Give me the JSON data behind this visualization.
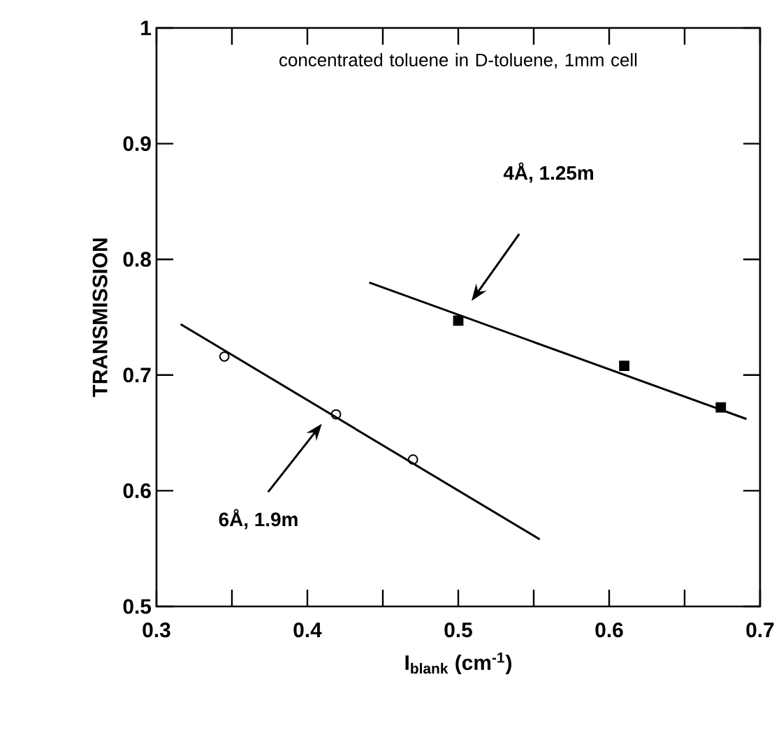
{
  "chart_data": {
    "type": "scatter",
    "title": "concentrated toluene in D-toluene, 1mm cell",
    "xlabel": "I$_{blank}$ (cm$^{-1}$)",
    "ylabel": "TRANSMISSION",
    "xlim": [
      0.3,
      0.7
    ],
    "ylim": [
      0.5,
      1
    ],
    "xticks": [
      0.3,
      {
        "value": 0.35,
        "label": null
      },
      0.4,
      {
        "value": 0.45,
        "label": null
      },
      0.5,
      {
        "value": 0.55,
        "label": null
      },
      0.6,
      {
        "value": 0.65,
        "label": null
      },
      0.7
    ],
    "yticks": [
      0.5,
      0.6,
      0.7,
      0.8,
      0.9,
      1
    ],
    "grid": false,
    "legend": false,
    "series": [
      {
        "marker": "circle",
        "color": "#000000",
        "x": [
          0.345,
          0.419,
          0.47
        ],
        "values": [
          0.716,
          0.666,
          0.627
        ]
      },
      {
        "marker": "square",
        "color": "#000000",
        "x": [
          0.5,
          0.61,
          0.674
        ],
        "values": [
          0.747,
          0.708,
          0.672
        ]
      },
      {
        "type": "line",
        "marker": "none",
        "color": "#000000",
        "x": [
          0.316,
          0.554
        ],
        "values": [
          0.744,
          0.558
        ]
      },
      {
        "type": "line",
        "marker": "none",
        "color": "#000000",
        "x": [
          0.441,
          0.691
        ],
        "values": [
          0.78,
          0.662
        ]
      }
    ],
    "annotations": [
      "4Å, 1.25m",
      "6Å, 1.9m"
    ]
  }
}
